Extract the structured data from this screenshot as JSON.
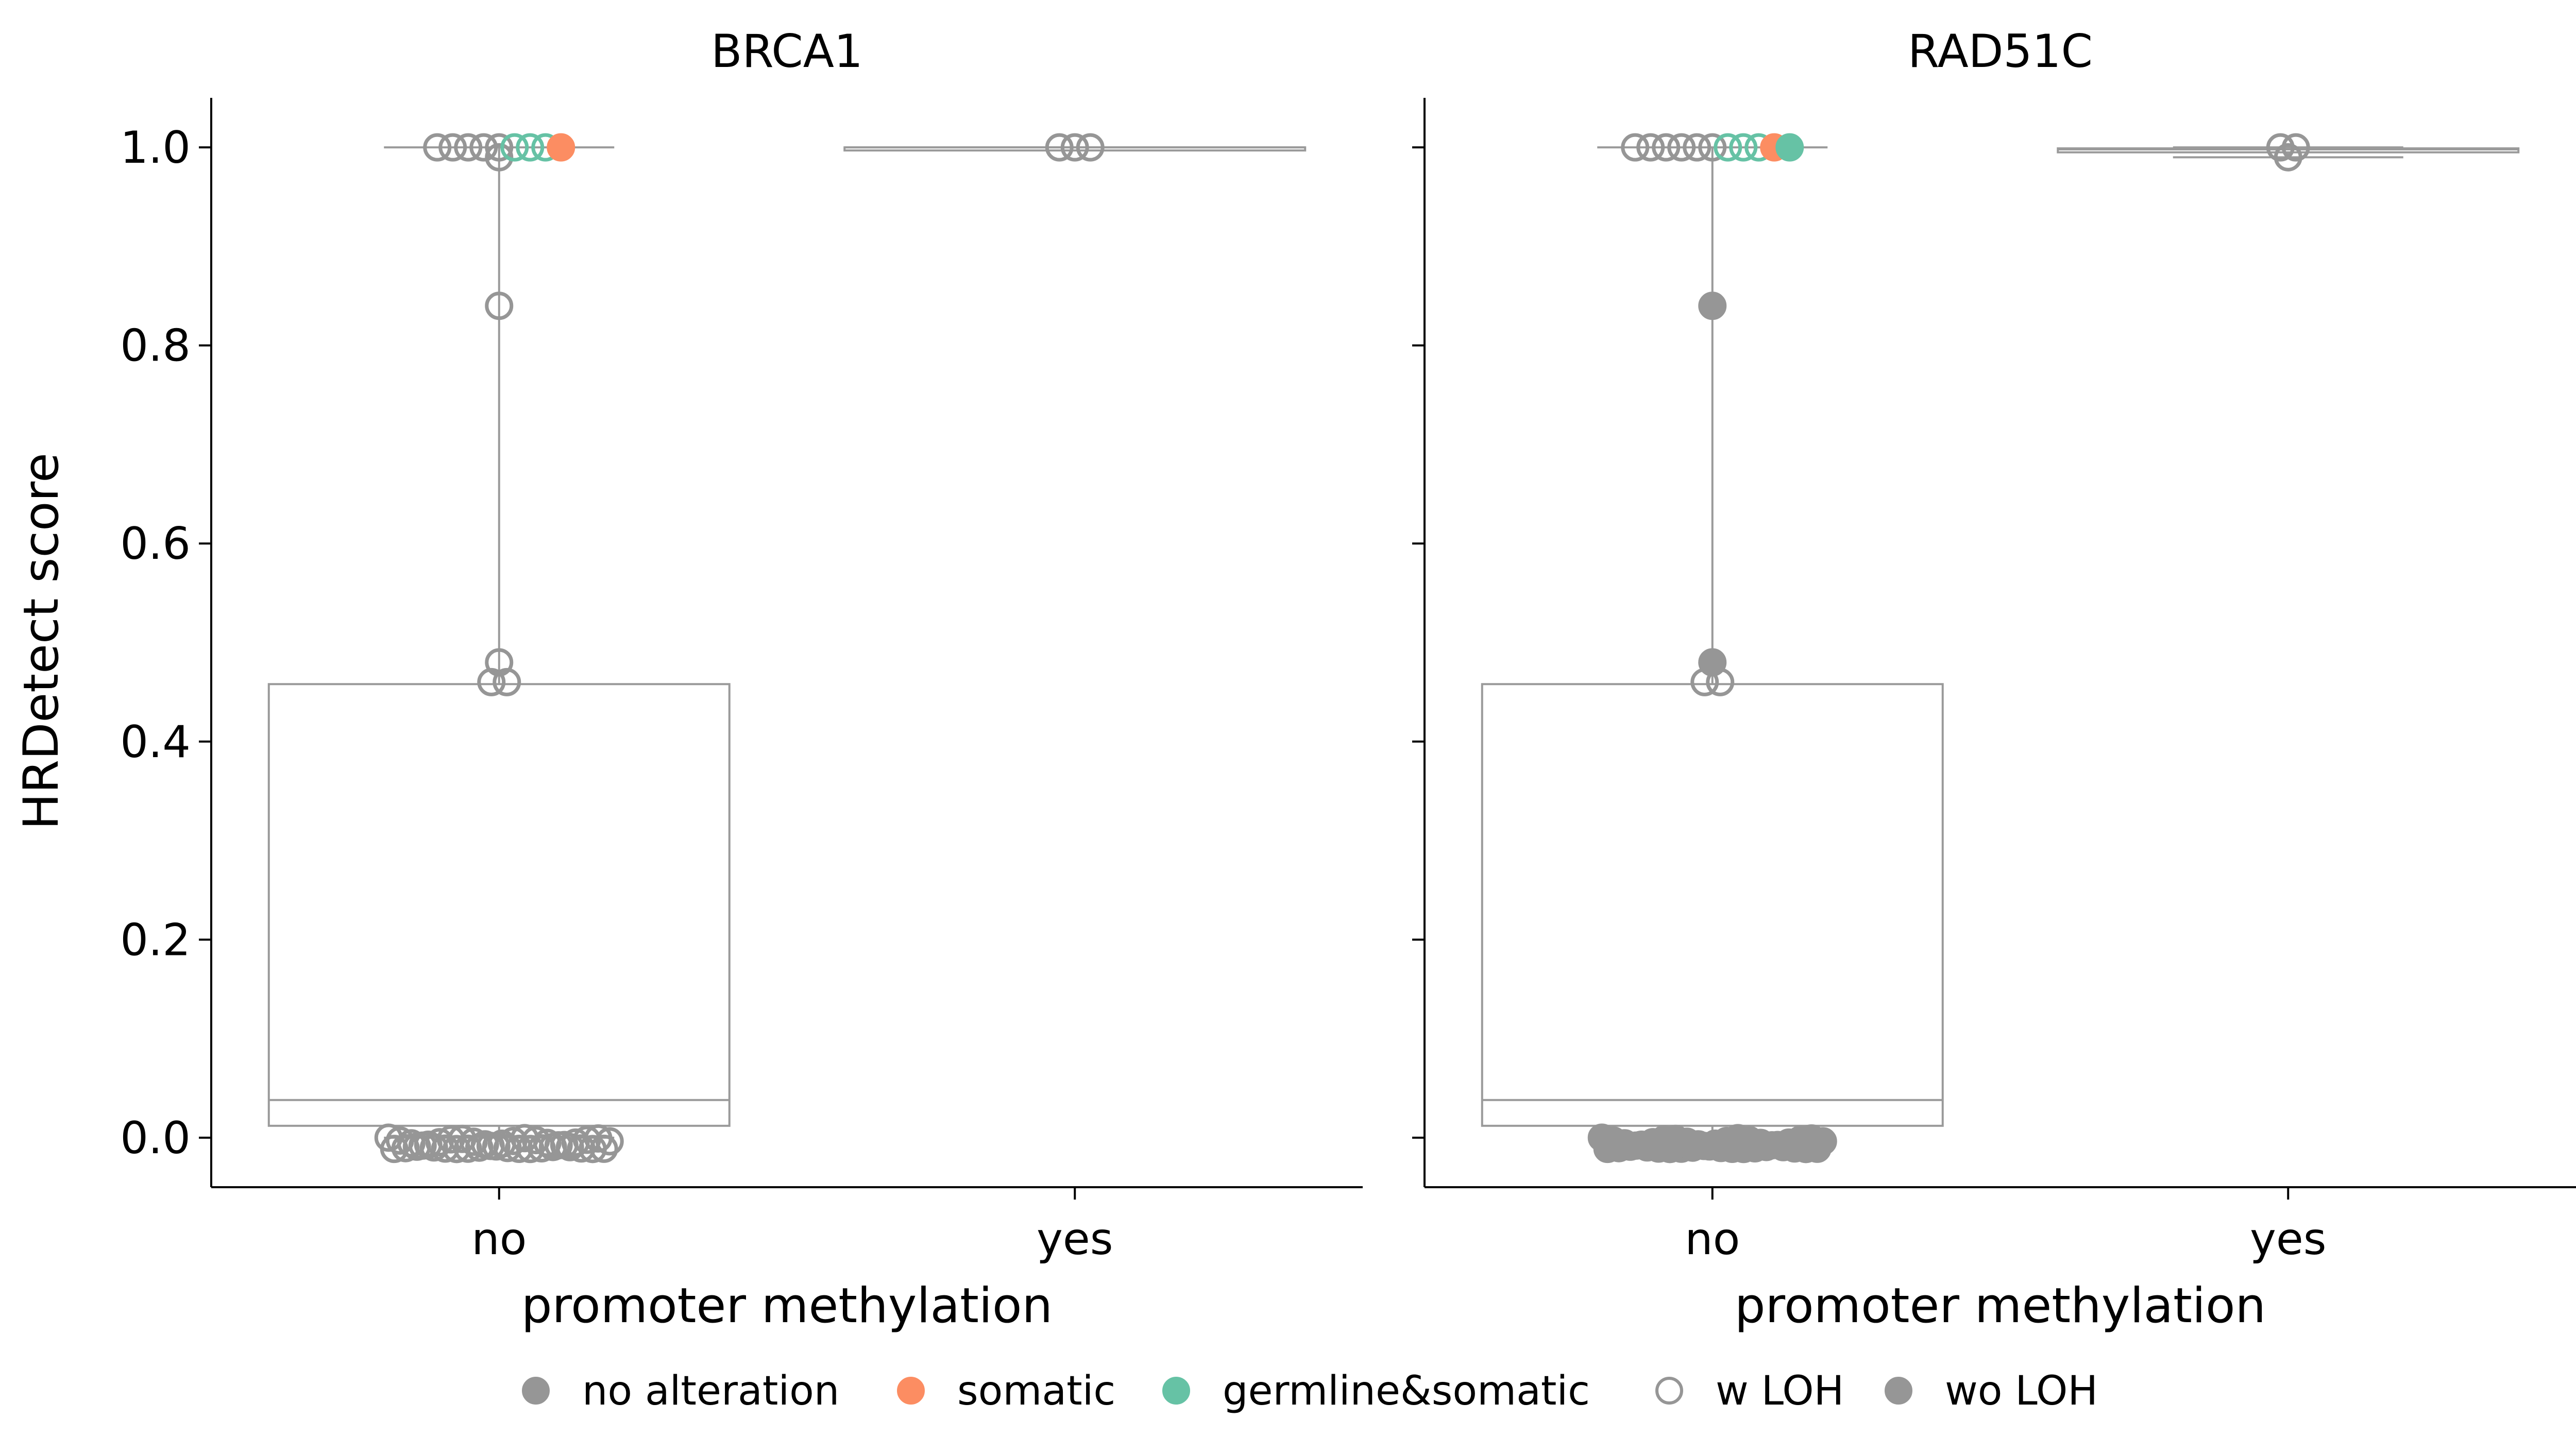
{
  "y_axis_label": "HRDetect score",
  "y_ticks": [
    "0.0",
    "0.2",
    "0.4",
    "0.6",
    "0.8",
    "1.0"
  ],
  "legend": [
    {
      "label": "no alteration",
      "color": "#969696",
      "filled": true
    },
    {
      "label": "somatic",
      "color": "#FC8D62",
      "filled": true
    },
    {
      "label": "germline&somatic",
      "color": "#66C2A5",
      "filled": true
    },
    {
      "label": "w LOH",
      "color": "#969696",
      "filled": false
    },
    {
      "label": "wo LOH",
      "color": "#969696",
      "filled": true
    }
  ],
  "chart_data": [
    {
      "type": "box",
      "title": "BRCA1",
      "xlabel": "promoter methylation",
      "ylabel": "HRDetect score",
      "categories": [
        "no",
        "yes"
      ],
      "ylim": [
        -0.05,
        1.05
      ],
      "boxes": [
        {
          "category": "no",
          "whisker_low": 0.0,
          "q1": 0.012,
          "median": 0.038,
          "q3": 0.458,
          "whisker_high": 1.0
        },
        {
          "category": "yes",
          "whisker_low": 1.0,
          "q1": 1.0,
          "median": 1.0,
          "q3": 1.0,
          "whisker_high": 1.0
        }
      ],
      "points": [
        {
          "category": "no",
          "y": 1.0,
          "group": "no alteration",
          "loh": "w LOH",
          "count": 5
        },
        {
          "category": "no",
          "y": 0.99,
          "group": "no alteration",
          "loh": "w LOH",
          "count": 1
        },
        {
          "category": "no",
          "y": 1.0,
          "group": "germline&somatic",
          "loh": "w LOH",
          "count": 3
        },
        {
          "category": "no",
          "y": 1.0,
          "group": "somatic",
          "loh": "wo LOH",
          "count": 1
        },
        {
          "category": "no",
          "y": 0.84,
          "group": "no alteration",
          "loh": "w LOH",
          "count": 1
        },
        {
          "category": "no",
          "y": 0.48,
          "group": "no alteration",
          "loh": "w LOH",
          "count": 1
        },
        {
          "category": "no",
          "y": 0.46,
          "group": "no alteration",
          "loh": "w LOH",
          "count": 2
        },
        {
          "category": "no",
          "y": 0.0,
          "group": "no alteration",
          "loh": "w LOH",
          "count": 40
        },
        {
          "category": "yes",
          "y": 1.0,
          "group": "no alteration",
          "loh": "w LOH",
          "count": 3
        }
      ]
    },
    {
      "type": "box",
      "title": "RAD51C",
      "xlabel": "promoter methylation",
      "ylabel": "HRDetect score",
      "categories": [
        "no",
        "yes"
      ],
      "ylim": [
        -0.05,
        1.05
      ],
      "boxes": [
        {
          "category": "no",
          "whisker_low": 0.0,
          "q1": 0.012,
          "median": 0.038,
          "q3": 0.458,
          "whisker_high": 1.0
        },
        {
          "category": "yes",
          "whisker_low": 0.99,
          "q1": 0.995,
          "median": 0.998,
          "q3": 0.999,
          "whisker_high": 1.0
        }
      ],
      "points": [
        {
          "category": "no",
          "y": 1.0,
          "group": "no alteration",
          "loh": "w LOH",
          "count": 6
        },
        {
          "category": "no",
          "y": 1.0,
          "group": "germline&somatic",
          "loh": "w LOH",
          "count": 3
        },
        {
          "category": "no",
          "y": 1.0,
          "group": "somatic",
          "loh": "wo LOH",
          "count": 1
        },
        {
          "category": "no",
          "y": 1.0,
          "group": "germline&somatic",
          "loh": "wo LOH",
          "count": 1
        },
        {
          "category": "no",
          "y": 0.84,
          "group": "no alteration",
          "loh": "wo LOH",
          "count": 1
        },
        {
          "category": "no",
          "y": 0.48,
          "group": "no alteration",
          "loh": "wo LOH",
          "count": 1
        },
        {
          "category": "no",
          "y": 0.46,
          "group": "no alteration",
          "loh": "w LOH",
          "count": 2
        },
        {
          "category": "no",
          "y": 0.0,
          "group": "no alteration",
          "loh": "wo LOH",
          "count": 40
        },
        {
          "category": "yes",
          "y": 1.0,
          "group": "no alteration",
          "loh": "w LOH",
          "count": 2
        },
        {
          "category": "yes",
          "y": 0.99,
          "group": "no alteration",
          "loh": "w LOH",
          "count": 1
        }
      ]
    }
  ]
}
